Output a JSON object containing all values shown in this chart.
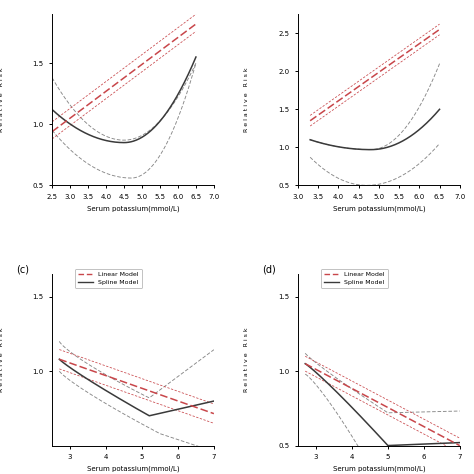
{
  "colors": {
    "linear": "#c8464a",
    "spline": "#3a3a3a",
    "ci_spline": "#888888",
    "ci_linear": "#c8464a"
  },
  "legend_linear": "Linear Model",
  "legend_spline": "Spline Model",
  "panel_a": {
    "xlim": [
      2.5,
      7.0
    ],
    "ylim": [
      0.5,
      1.9
    ],
    "yticks": [
      0.5,
      1.0,
      1.5
    ],
    "xticks": [
      2.5,
      3.0,
      3.5,
      4.0,
      4.5,
      5.0,
      5.5,
      6.0,
      6.5,
      7.0
    ],
    "xlabel": "Serum potassium(mmol/L)"
  },
  "panel_b": {
    "xlim": [
      3.0,
      7.0
    ],
    "ylim": [
      0.5,
      2.75
    ],
    "yticks": [
      0.5,
      1.0,
      1.5,
      2.0,
      2.5
    ],
    "xticks": [
      3.0,
      3.5,
      4.0,
      4.5,
      5.0,
      5.5,
      6.0,
      6.5,
      7.0
    ],
    "xlabel": "Serum potassium(mmol/L)"
  },
  "panel_c": {
    "xlim": [
      2.5,
      7.0
    ],
    "ylim": [
      0.5,
      1.65
    ],
    "yticks": [
      1.0,
      1.5
    ],
    "xticks": [
      3.0,
      4.0,
      5.0,
      6.0,
      7.0
    ],
    "xlabel": "Serum potassium(mmol/L)"
  },
  "panel_d": {
    "xlim": [
      2.5,
      7.0
    ],
    "ylim": [
      0.5,
      1.65
    ],
    "yticks": [
      0.5,
      1.0,
      1.5
    ],
    "xticks": [
      3.0,
      4.0,
      5.0,
      6.0,
      7.0
    ],
    "xlabel": "Serum potassium(mmol/L)"
  }
}
